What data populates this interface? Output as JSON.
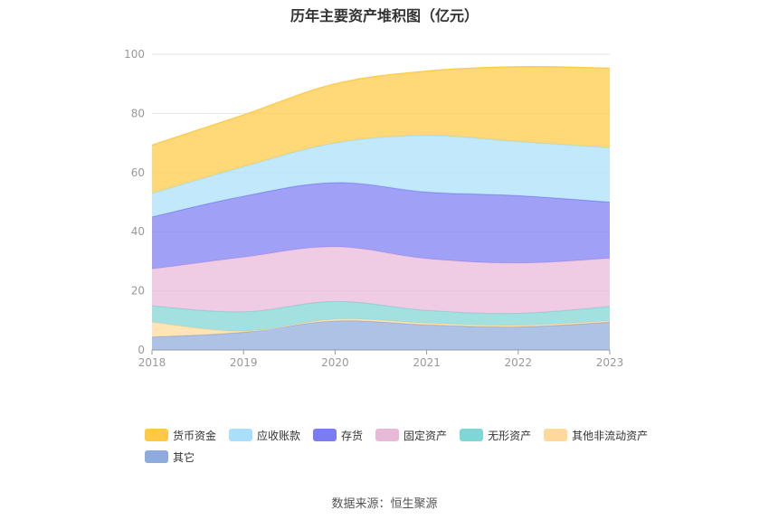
{
  "chart_data": {
    "type": "area",
    "stacked": true,
    "title": "历年主要资产堆积图（亿元）",
    "categories": [
      "2018",
      "2019",
      "2020",
      "2021",
      "2022",
      "2023"
    ],
    "ylim": [
      0,
      100
    ],
    "yticks": [
      0,
      20,
      40,
      60,
      80,
      100
    ],
    "grid": true,
    "legend_position": "bottom",
    "series": [
      {
        "name": "其它",
        "color": "#8faadc",
        "values": [
          4.4,
          6.0,
          9.8,
          8.5,
          7.8,
          9.4
        ]
      },
      {
        "name": "其他非流动资产",
        "color": "#ffd99a",
        "values": [
          5.0,
          0.4,
          0.6,
          0.6,
          0.5,
          0.5
        ]
      },
      {
        "name": "无形资产",
        "color": "#7fd6d6",
        "values": [
          5.5,
          6.5,
          6.0,
          4.3,
          4.1,
          4.8
        ]
      },
      {
        "name": "固定资产",
        "color": "#e9b9d8",
        "values": [
          12.5,
          18.5,
          18.5,
          17.5,
          17.0,
          16.3
        ]
      },
      {
        "name": "存货",
        "color": "#7b7cf2",
        "values": [
          17.6,
          20.6,
          21.7,
          22.5,
          22.8,
          19.0
        ]
      },
      {
        "name": "应收账款",
        "color": "#a9dffa",
        "values": [
          8.0,
          10.0,
          13.4,
          19.1,
          18.3,
          18.4
        ]
      },
      {
        "name": "货币资金",
        "color": "#ffc943",
        "values": [
          16.3,
          17.5,
          20.0,
          21.8,
          25.3,
          26.9
        ]
      }
    ],
    "legend_order": [
      "货币资金",
      "应收账款",
      "存货",
      "固定资产",
      "无形资产",
      "其他非流动资产",
      "其它"
    ],
    "source": "数据来源：恒生聚源"
  }
}
